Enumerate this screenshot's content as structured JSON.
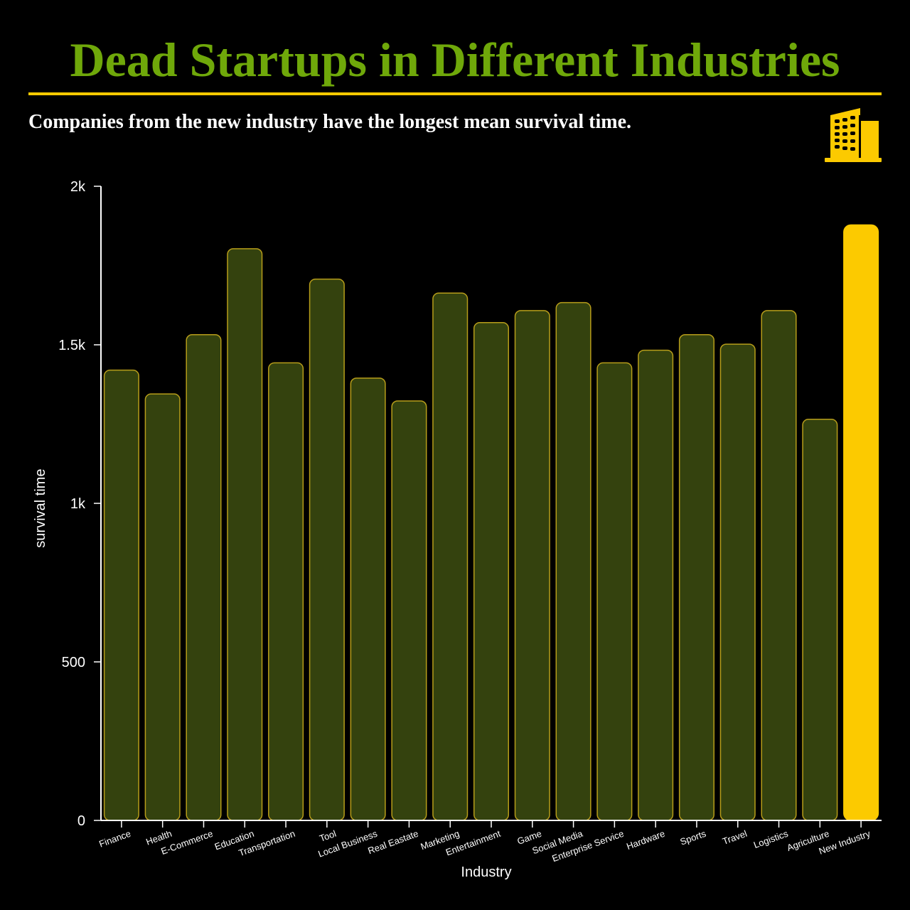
{
  "title": "Dead Startups in Different Industries",
  "subtitle": "Companies from the new industry have the longest mean survival time.",
  "icon": "office-building-icon",
  "colors": {
    "background": "#000000",
    "title": "#6fa80a",
    "accent": "#fcca00",
    "bar_fill": "#34420e",
    "bar_stroke": "#b79d1a",
    "text": "#ffffff"
  },
  "chart_data": {
    "type": "bar",
    "xlabel": "Industry",
    "ylabel": "survival time",
    "ylim": [
      0,
      2000
    ],
    "yticks": [
      0,
      500,
      1000,
      1500,
      2000
    ],
    "ytick_labels": [
      "0",
      "500",
      "1k",
      "1.5k",
      "2k"
    ],
    "highlight": "New Industry",
    "categories": [
      "Finance",
      "Health",
      "E-Commerce",
      "Education",
      "Transportation",
      "Tool",
      "Local Business",
      "Real Eastate",
      "Marketing",
      "Entertainment",
      "Game",
      "Social Media",
      "Enterprise Service",
      "Hardware",
      "Sports",
      "Travel",
      "Logistics",
      "Agriculture",
      "New Industry"
    ],
    "values": [
      1420,
      1345,
      1532,
      1803,
      1443,
      1707,
      1395,
      1323,
      1663,
      1570,
      1608,
      1633,
      1443,
      1483,
      1532,
      1502,
      1608,
      1265,
      1878
    ]
  }
}
